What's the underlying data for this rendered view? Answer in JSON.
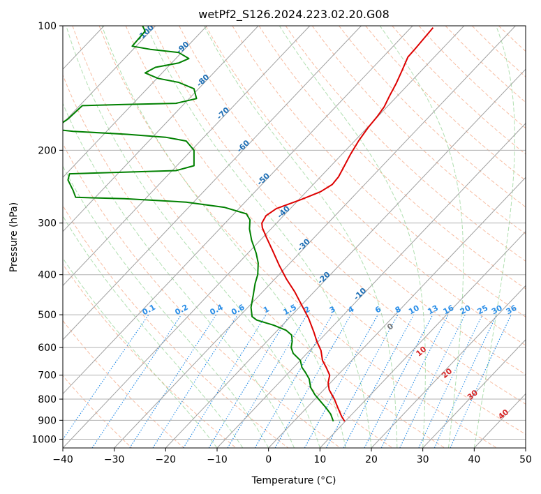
{
  "chart_data": {
    "type": "line",
    "title": "wetPf2_S126.2024.223.02.20.G08",
    "xlabel": "Temperature (°C)",
    "ylabel": "Pressure (hPa)",
    "xlim": [
      -40,
      50
    ],
    "ylim": [
      1050,
      100
    ],
    "y_scale": "log",
    "x_ticks": [
      -40,
      -30,
      -20,
      -10,
      0,
      10,
      20,
      30,
      40,
      50
    ],
    "y_ticks": [
      100,
      200,
      300,
      400,
      500,
      600,
      700,
      800,
      900,
      1000
    ],
    "grid": true,
    "colors": {
      "temperature": "#dd0000",
      "dewpoint": "#008000",
      "isotherm": "#a0a0a0",
      "dry_adiabat": "#f4a582",
      "moist_adiabat": "#8fd18f",
      "mixing_ratio": "#1e88e5",
      "isotherm_label": "#1f6fb5",
      "lcl_label": "#d62728"
    },
    "isotherm_labels": [
      "-100",
      "-90",
      "-80",
      "-70",
      "-60",
      "-50",
      "-40",
      "-30",
      "-20",
      "-10"
    ],
    "mixing_ratio_labels": [
      "0.1",
      "0.2",
      "0.4",
      "0.6",
      "1",
      "1.5",
      "2",
      "3",
      "4",
      "6",
      "8",
      "10",
      "13",
      "16",
      "20",
      "25",
      "30",
      "36"
    ],
    "adiabat_labels": [
      "0",
      "10",
      "20",
      "30",
      "40"
    ],
    "series": [
      {
        "name": "Temperature",
        "points": [
          [
            14.8,
            905
          ],
          [
            14.2,
            880
          ],
          [
            13.5,
            840
          ],
          [
            12.8,
            800
          ],
          [
            11.8,
            760
          ],
          [
            11.6,
            730
          ],
          [
            11.9,
            700
          ],
          [
            11.2,
            670
          ],
          [
            10.5,
            645
          ],
          [
            10.2,
            610
          ],
          [
            9.4,
            580
          ],
          [
            8.8,
            550
          ],
          [
            7.8,
            510
          ],
          [
            6.3,
            470
          ],
          [
            5.1,
            440
          ],
          [
            3.5,
            410
          ],
          [
            2.1,
            380
          ],
          [
            0.8,
            350
          ],
          [
            -0.4,
            325
          ],
          [
            -1.2,
            308
          ],
          [
            -1.3,
            300
          ],
          [
            -0.5,
            288
          ],
          [
            1.5,
            277
          ],
          [
            6.4,
            263
          ],
          [
            10.1,
            252
          ],
          [
            12.4,
            242
          ],
          [
            13.6,
            232
          ],
          [
            14.6,
            220
          ],
          [
            15.9,
            205
          ],
          [
            17.5,
            190
          ],
          [
            19.4,
            176
          ],
          [
            21.1,
            166
          ],
          [
            22.5,
            157
          ],
          [
            23.5,
            148
          ],
          [
            24.8,
            138
          ],
          [
            26.0,
            128
          ],
          [
            27.1,
            119
          ],
          [
            28.7,
            113
          ],
          [
            30.3,
            107
          ],
          [
            32.0,
            101
          ]
        ]
      },
      {
        "name": "Dewpoint",
        "points": [
          [
            12.6,
            905
          ],
          [
            12.1,
            870
          ],
          [
            11.2,
            840
          ],
          [
            10.1,
            810
          ],
          [
            9.0,
            780
          ],
          [
            8.2,
            750
          ],
          [
            7.9,
            715
          ],
          [
            7.2,
            690
          ],
          [
            6.5,
            670
          ],
          [
            6.2,
            645
          ],
          [
            4.8,
            620
          ],
          [
            4.4,
            600
          ],
          [
            4.6,
            580
          ],
          [
            4.5,
            560
          ],
          [
            3.4,
            545
          ],
          [
            1.0,
            530
          ],
          [
            -2.3,
            515
          ],
          [
            -3.2,
            505
          ],
          [
            -3.4,
            480
          ],
          [
            -3.0,
            450
          ],
          [
            -2.6,
            420
          ],
          [
            -2.1,
            400
          ],
          [
            -2.0,
            375
          ],
          [
            -2.4,
            355
          ],
          [
            -3.3,
            330
          ],
          [
            -3.7,
            310
          ],
          [
            -3.6,
            295
          ],
          [
            -4.3,
            285
          ],
          [
            -8.5,
            275
          ],
          [
            -16,
            267
          ],
          [
            -28,
            262
          ],
          [
            -37.5,
            260
          ],
          [
            -38.0,
            250
          ],
          [
            -39.0,
            236
          ],
          [
            -38.7,
            228
          ],
          [
            -28,
            226
          ],
          [
            -18,
            224
          ],
          [
            -14.5,
            218
          ],
          [
            -14.5,
            200
          ],
          [
            -16.0,
            190
          ],
          [
            -20,
            186
          ],
          [
            -27.5,
            183
          ],
          [
            -38.0,
            180
          ],
          [
            -41.5,
            178
          ],
          [
            -42,
            178
          ],
          [
            -39.0,
            168
          ],
          [
            -36.2,
            156
          ],
          [
            -28,
            155
          ],
          [
            -18,
            154
          ],
          [
            -14.0,
            150
          ],
          [
            -14.5,
            142
          ],
          [
            -17.5,
            137
          ],
          [
            -21.5,
            134
          ],
          [
            -24.0,
            130
          ],
          [
            -22.0,
            126
          ],
          [
            -17.5,
            123
          ],
          [
            -15.5,
            120
          ],
          [
            -17.5,
            116
          ],
          [
            -23.0,
            114
          ],
          [
            -26.5,
            112
          ],
          [
            -24.0,
            103
          ],
          [
            -24.5,
            100
          ]
        ]
      }
    ]
  }
}
